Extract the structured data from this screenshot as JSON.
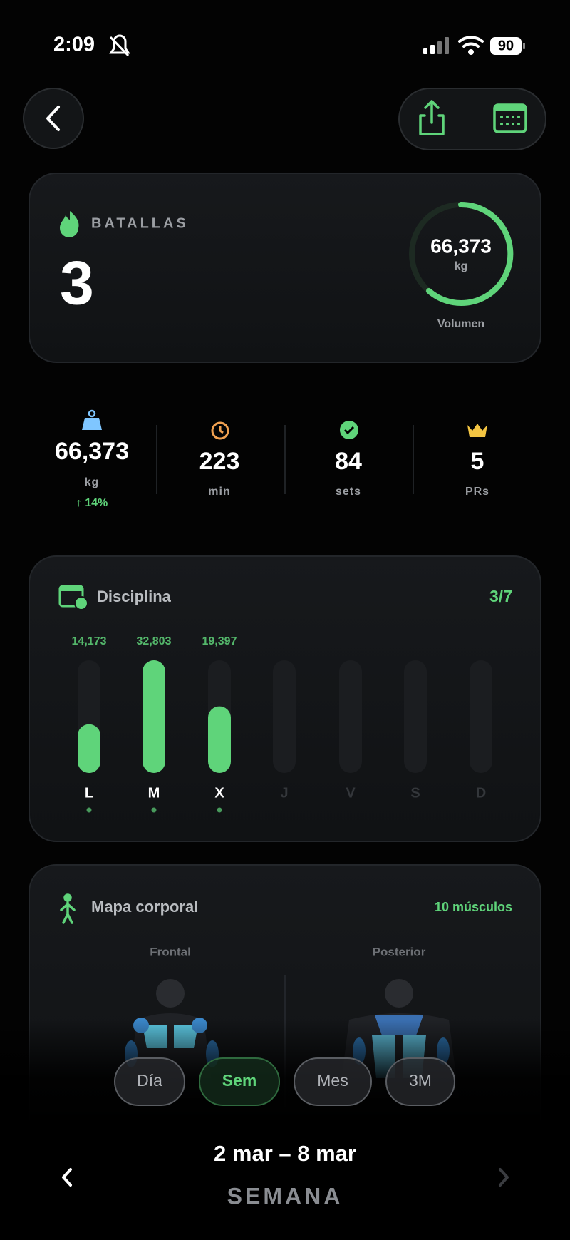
{
  "status_bar": {
    "time": "2:09",
    "battery": "90"
  },
  "summary": {
    "label": "BATALLAS",
    "count": "3",
    "volume": "66,373",
    "volume_unit": "kg",
    "volume_label": "Volumen"
  },
  "stats": [
    {
      "value": "66,373",
      "unit": "kg",
      "change": "↑ 14%"
    },
    {
      "value": "223",
      "unit": "min"
    },
    {
      "value": "84",
      "unit": "sets"
    },
    {
      "value": "5",
      "unit": "PRs"
    }
  ],
  "chart_data": {
    "type": "bar",
    "title": "Disciplina",
    "summary": "3/7",
    "categories": [
      "L",
      "M",
      "X",
      "J",
      "V",
      "S",
      "D"
    ],
    "values": [
      14173,
      32803,
      19397,
      null,
      null,
      null,
      null
    ],
    "value_labels": [
      "14,173",
      "32,803",
      "19,397",
      null,
      null,
      null,
      null
    ],
    "color": "#5fd47a"
  },
  "body_map": {
    "title": "Mapa corporal",
    "count": "10 músculos",
    "views": [
      "Frontal",
      "Posterior"
    ]
  },
  "period_selector": {
    "options": [
      "Día",
      "Sem",
      "Mes",
      "3M"
    ],
    "active": 1
  },
  "footer": {
    "range": "2 mar – 8 mar",
    "period": "SEMANA"
  }
}
